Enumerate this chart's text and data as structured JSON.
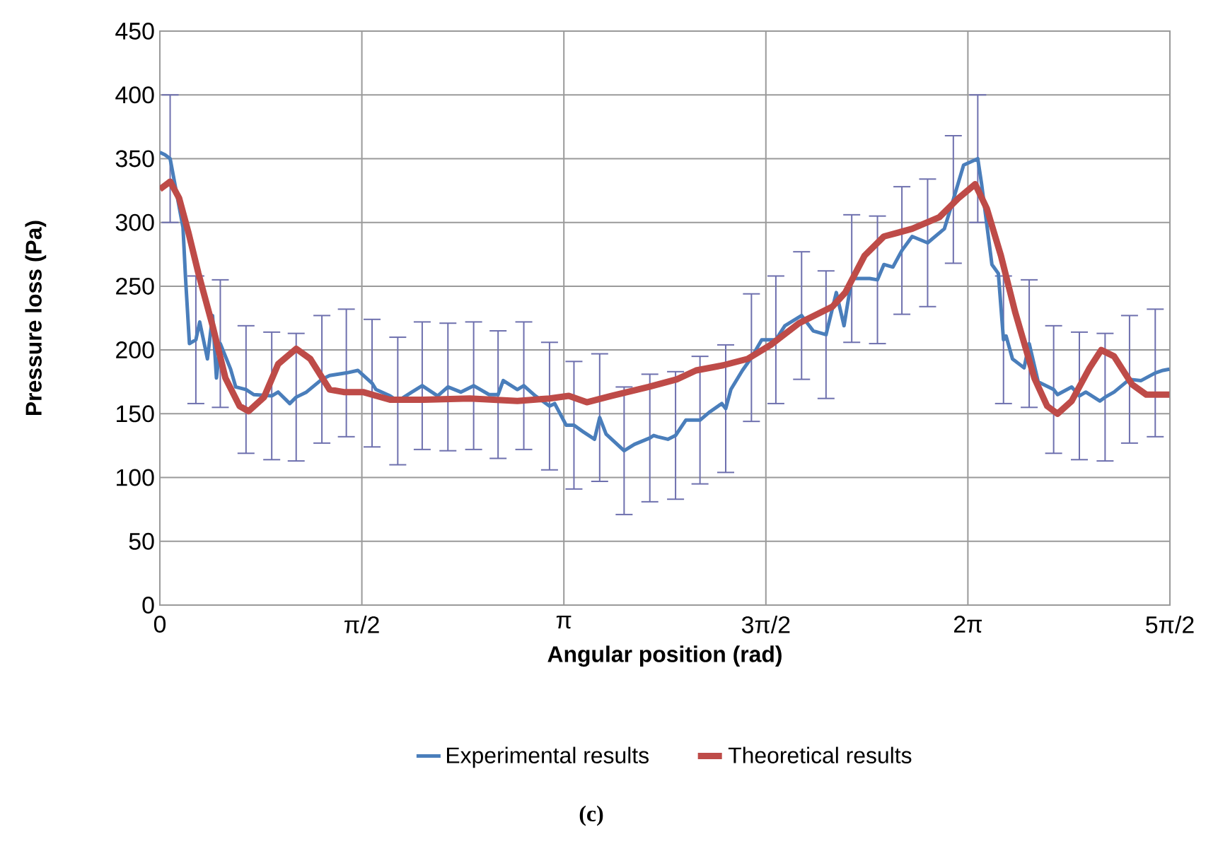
{
  "chart_data": {
    "type": "line",
    "xlabel": "Angular position  (rad)",
    "ylabel": "Pressure loss (Pa)",
    "annotations": [
      "(c)"
    ],
    "xlim": [
      0,
      7.854
    ],
    "ylim": [
      0,
      450
    ],
    "xticks": [
      0,
      {
        "value": 1.5708,
        "label": "π/2"
      },
      {
        "value": 3.1416,
        "label": "π"
      },
      {
        "value": 4.7124,
        "label": "3π/2"
      },
      {
        "value": 6.2832,
        "label": "2π"
      },
      {
        "value": 7.854,
        "label": "5π/2"
      }
    ],
    "yticks": [
      0,
      50,
      100,
      150,
      200,
      250,
      300,
      350,
      400,
      450
    ],
    "grid": true,
    "legend": "bottom",
    "marker": "none",
    "line_style": "solid",
    "series": [
      {
        "name": "Experimental results",
        "color": "#4a7ebb",
        "x": [
          0.0,
          0.04,
          0.08,
          0.18,
          0.2,
          0.23,
          0.28,
          0.31,
          0.37,
          0.41,
          0.44,
          0.47,
          0.55,
          0.59,
          0.67,
          0.73,
          0.87,
          0.92,
          1.01,
          1.06,
          1.14,
          1.26,
          1.32,
          1.45,
          1.54,
          1.65,
          1.68,
          1.79,
          1.85,
          1.96,
          2.04,
          2.16,
          2.24,
          2.34,
          2.44,
          2.56,
          2.63,
          2.67,
          2.78,
          2.83,
          2.92,
          3.03,
          3.07,
          3.16,
          3.22,
          3.29,
          3.38,
          3.42,
          3.47,
          3.61,
          3.69,
          3.81,
          3.84,
          3.87,
          3.95,
          4.01,
          4.09,
          4.2,
          4.27,
          4.37,
          4.4,
          4.44,
          4.53,
          4.6,
          4.68,
          4.79,
          4.86,
          4.99,
          5.08,
          5.18,
          5.26,
          5.32,
          5.38,
          5.41,
          5.52,
          5.58,
          5.63,
          5.7,
          5.77,
          5.85,
          5.97,
          6.1,
          6.17,
          6.25,
          6.36,
          6.39,
          6.47,
          6.52,
          6.56,
          6.58,
          6.63,
          6.68,
          6.72,
          6.76,
          6.83,
          6.95,
          6.98,
          7.09,
          7.15,
          7.2,
          7.31,
          7.35,
          7.42,
          7.54,
          7.63,
          7.74,
          7.8,
          7.85
        ],
        "values": [
          355,
          353,
          350,
          296,
          256,
          205,
          208,
          222,
          193,
          227,
          178,
          205,
          185,
          171,
          169,
          165,
          164,
          167,
          158,
          163,
          167,
          177,
          180,
          182,
          184,
          174,
          169,
          164,
          160,
          167,
          172,
          164,
          171,
          167,
          172,
          165,
          165,
          176,
          169,
          172,
          164,
          156,
          158,
          141,
          141,
          136,
          130,
          147,
          134,
          121,
          126,
          131,
          133,
          132,
          130,
          133,
          145,
          145,
          151,
          158,
          154,
          169,
          184,
          194,
          208,
          208,
          219,
          227,
          215,
          212,
          245,
          219,
          256,
          256,
          256,
          255,
          267,
          265,
          278,
          289,
          284,
          295,
          318,
          345,
          350,
          330,
          267,
          260,
          208,
          211,
          193,
          null,
          186,
          205,
          175,
          169,
          165,
          171,
          164,
          167,
          160,
          163,
          167,
          177,
          176,
          182,
          184,
          185
        ],
        "errors": [
          null,
          null,
          50,
          null,
          null,
          null,
          50,
          null,
          null,
          null,
          null,
          50,
          null,
          null,
          50,
          null,
          50,
          null,
          null,
          50,
          null,
          50,
          null,
          50,
          null,
          50,
          null,
          null,
          50,
          null,
          50,
          null,
          50,
          null,
          50,
          null,
          50,
          null,
          null,
          50,
          null,
          50,
          null,
          null,
          50,
          null,
          null,
          50,
          null,
          50,
          null,
          50,
          null,
          null,
          null,
          50,
          null,
          50,
          null,
          null,
          50,
          null,
          null,
          50,
          null,
          50,
          null,
          50,
          null,
          50,
          null,
          null,
          50,
          null,
          null,
          50,
          null,
          null,
          50,
          null,
          50,
          null,
          50,
          null,
          50,
          null,
          null,
          null,
          50,
          null,
          null,
          null,
          null,
          50,
          null,
          50,
          null,
          null,
          50,
          null,
          null,
          50,
          null,
          50,
          null,
          50,
          null,
          null
        ]
      },
      {
        "name": "Theoretical results",
        "color": "#be4b48",
        "x": [
          0.0,
          0.08,
          0.15,
          0.22,
          0.3,
          0.41,
          0.51,
          0.62,
          0.69,
          0.81,
          0.92,
          1.06,
          1.17,
          1.32,
          1.43,
          1.58,
          1.79,
          2.05,
          2.41,
          2.78,
          3.03,
          3.18,
          3.32,
          3.51,
          3.8,
          4.02,
          4.17,
          4.38,
          4.57,
          4.75,
          4.97,
          5.23,
          5.33,
          5.48,
          5.63,
          5.85,
          6.06,
          6.21,
          6.34,
          6.43,
          6.54,
          6.65,
          6.8,
          6.9,
          6.98,
          7.09,
          7.23,
          7.32,
          7.42,
          7.56,
          7.67,
          7.8,
          7.85
        ],
        "values": [
          326,
          332,
          319,
          293,
          260,
          219,
          178,
          156,
          152,
          163,
          189,
          201,
          193,
          169,
          167,
          167,
          161,
          161,
          162,
          160,
          162,
          164,
          159,
          164,
          171,
          177,
          184,
          188,
          193,
          204,
          221,
          234,
          245,
          274,
          289,
          295,
          304,
          319,
          330,
          311,
          274,
          230,
          178,
          156,
          150,
          160,
          186,
          200,
          195,
          173,
          165,
          165,
          165
        ]
      }
    ]
  }
}
